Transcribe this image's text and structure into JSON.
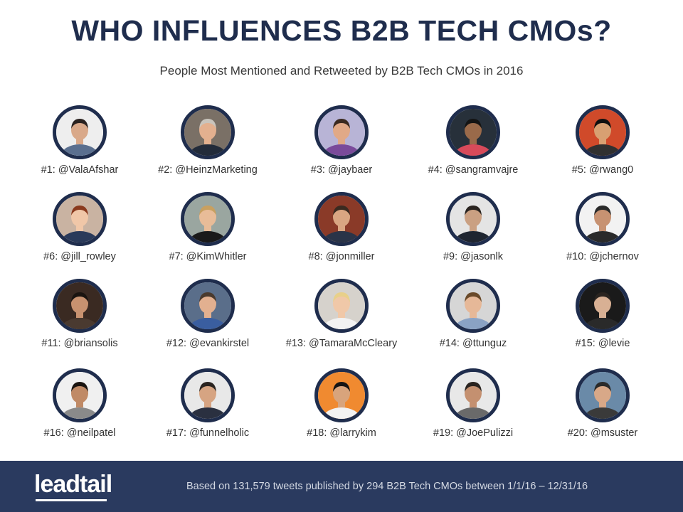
{
  "header": {
    "title": "WHO INFLUENCES B2B TECH CMOs?",
    "subtitle": "People Most Mentioned and Retweeted by B2B Tech CMOs in 2016"
  },
  "influencers": [
    {
      "label": "#1: @ValaAfshar",
      "bg": "#eeeeee",
      "skin": "#d9a98a",
      "hair": "#2a2220",
      "shirt": "#5a6f8f"
    },
    {
      "label": "#2: @HeinzMarketing",
      "bg": "#7a7066",
      "skin": "#e3b08f",
      "hair": "#c9c4bc",
      "shirt": "#222b3a"
    },
    {
      "label": "#3: @jaybaer",
      "bg": "#b8b4d6",
      "skin": "#e1a987",
      "hair": "#3b2a20",
      "shirt": "#7a4a9a"
    },
    {
      "label": "#4: @sangramvajre",
      "bg": "#27303a",
      "skin": "#9a6a4a",
      "hair": "#141414",
      "shirt": "#d84a5a"
    },
    {
      "label": "#5: @rwang0",
      "bg": "#d04a2a",
      "skin": "#d8a072",
      "hair": "#101010",
      "shirt": "#303030"
    },
    {
      "label": "#6: @jill_rowley",
      "bg": "#c9b3a2",
      "skin": "#f0c7a8",
      "hair": "#8a3a1e",
      "shirt": "#2a3a5a"
    },
    {
      "label": "#7: @KimWhitler",
      "bg": "#9aa6a0",
      "skin": "#e8bc98",
      "hair": "#c8a060",
      "shirt": "#1a1a1a"
    },
    {
      "label": "#8: @jonmiller",
      "bg": "#8a3a28",
      "skin": "#d9a682",
      "hair": "#3a2a20",
      "shirt": "#2a3448"
    },
    {
      "label": "#9: @jasonlk",
      "bg": "#e4e4e4",
      "skin": "#caa082",
      "hair": "#2a2420",
      "shirt": "#1f2530"
    },
    {
      "label": "#10: @jchernov",
      "bg": "#f2f2f2",
      "skin": "#c79272",
      "hair": "#2a2a2a",
      "shirt": "#2a2a2a"
    },
    {
      "label": "#11: @briansolis",
      "bg": "#3a2a22",
      "skin": "#c89270",
      "hair": "#1a1410",
      "shirt": "#4a3a30"
    },
    {
      "label": "#12: @evankirstel",
      "bg": "#5a6e8a",
      "skin": "#e2b090",
      "hair": "#4a3a2e",
      "shirt": "#3a5ea0"
    },
    {
      "label": "#13: @TamaraMcCleary",
      "bg": "#d6d2cc",
      "skin": "#f0c8a8",
      "hair": "#e8d08a",
      "shirt": "#f2f2f2"
    },
    {
      "label": "#14: @ttunguz",
      "bg": "#d6d6d6",
      "skin": "#e6b898",
      "hair": "#6a4a2a",
      "shirt": "#8aa2c4"
    },
    {
      "label": "#15: @levie",
      "bg": "#1a1a1a",
      "skin": "#d8b094",
      "hair": "#2a2420",
      "shirt": "#2a2a2a"
    },
    {
      "label": "#16: @neilpatel",
      "bg": "#f0f0f0",
      "skin": "#c08a66",
      "hair": "#1a1410",
      "shirt": "#8a8a8a"
    },
    {
      "label": "#17: @funnelholic",
      "bg": "#e8e8e8",
      "skin": "#d6a482",
      "hair": "#2a2420",
      "shirt": "#2a3040"
    },
    {
      "label": "#18: @larrykim",
      "bg": "#f08a30",
      "skin": "#d8a47c",
      "hair": "#141414",
      "shirt": "#f2f2f2"
    },
    {
      "label": "#19: @JoePulizzi",
      "bg": "#e8e8e8",
      "skin": "#c49070",
      "hair": "#2a2420",
      "shirt": "#6a6a6a"
    },
    {
      "label": "#20: @msuster",
      "bg": "#6a8aa8",
      "skin": "#d8a888",
      "hair": "#2a2a2a",
      "shirt": "#3a3a3a"
    }
  ],
  "footer": {
    "logo": "leadtail",
    "note": "Based on 131,579 tweets published by 294 B2B Tech CMOs between 1/1/16 – 12/31/16",
    "bg": "#2a3a5f"
  }
}
